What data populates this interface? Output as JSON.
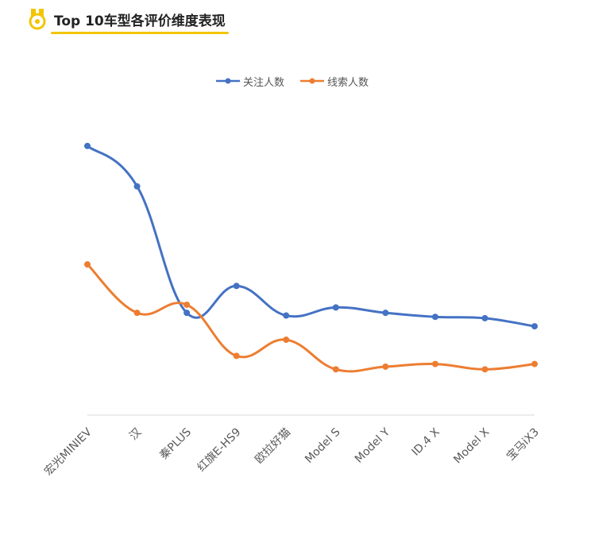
{
  "header": {
    "title": "Top 10车型各评价维度表现",
    "icon": "medal-icon"
  },
  "colors": {
    "accent": "#f2c500",
    "series1": "#4472c4",
    "series2": "#ed7d31",
    "axis": "#d9d9d9",
    "text": "#595959"
  },
  "chart_data": {
    "type": "line",
    "categories": [
      "宏光MINIEV",
      "汉",
      "秦PLUS",
      "红旗E-HS9",
      "欧拉好猫",
      "Model S",
      "Model Y",
      "ID.4 X",
      "Model X",
      "宝马iX3"
    ],
    "series": [
      {
        "name": "关注人数",
        "values": [
          100,
          85,
          38,
          48,
          37,
          40,
          38,
          36.5,
          36,
          33
        ]
      },
      {
        "name": "线索人数",
        "values": [
          56,
          38,
          41,
          22,
          28,
          17,
          18,
          19,
          17,
          19
        ]
      }
    ],
    "ylim": [
      0,
      110
    ],
    "grid": false,
    "legend": "top-center",
    "smooth": true,
    "xlabel": "",
    "ylabel": ""
  }
}
